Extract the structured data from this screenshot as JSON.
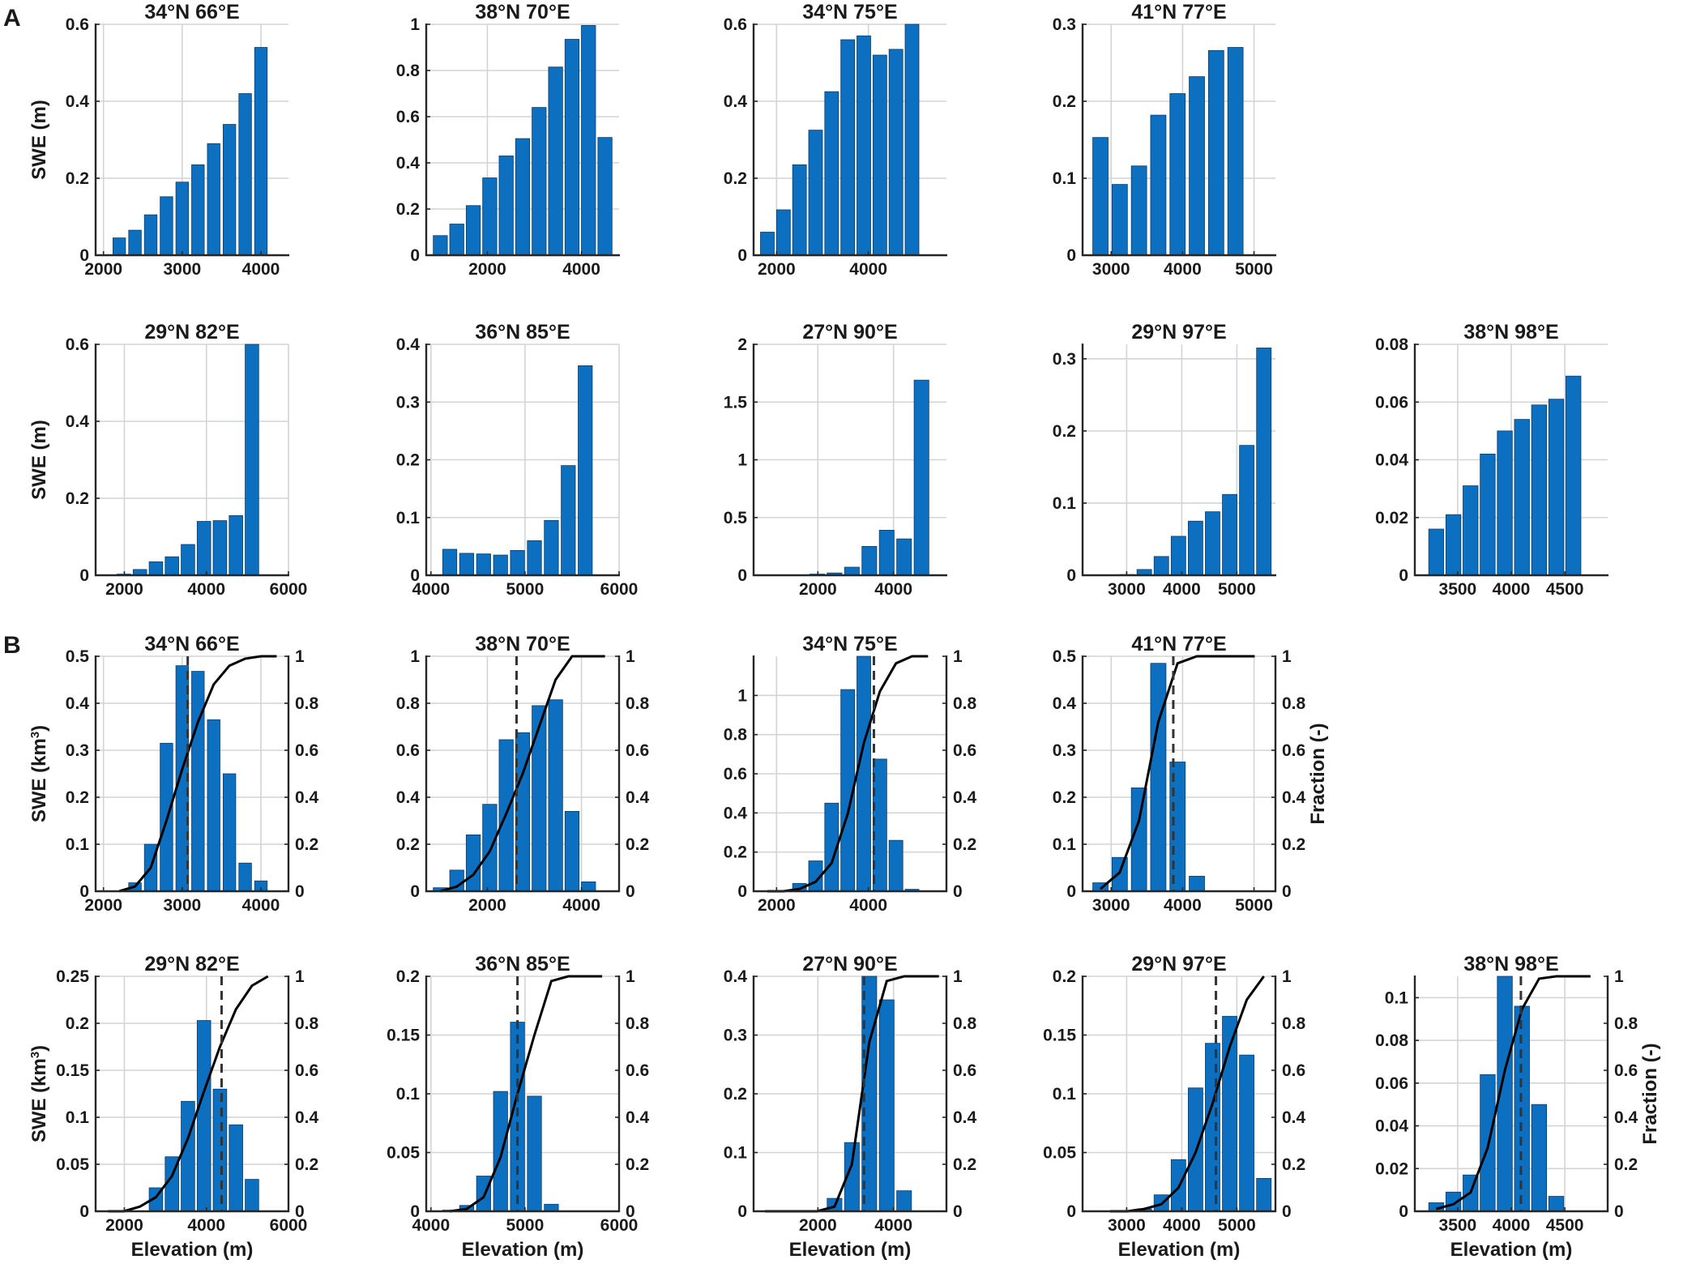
{
  "figure": {
    "panel_labels": [
      "A",
      "B"
    ],
    "colors": {
      "bar": "#0d6fbf",
      "bar_edge": "#0a3d6b",
      "grid": "#d4d4d4",
      "axis": "#262626",
      "curve": "#000000"
    }
  },
  "chart_data": [
    {
      "id": "A1",
      "type": "bar",
      "title": "34°N 66°E",
      "ylabel": "SWE (m)",
      "xlim": [
        1900,
        4350
      ],
      "ylim": [
        0,
        0.6
      ],
      "xticks": [
        2000,
        3000,
        4000
      ],
      "yticks": [
        0,
        0.2,
        0.4,
        0.6
      ],
      "ytick_labels": [
        "0",
        "0.2",
        "0.4",
        "0.6"
      ],
      "bar_width": 160,
      "x": [
        2200,
        2400,
        2600,
        2800,
        3000,
        3200,
        3400,
        3600,
        3800,
        4000,
        4200
      ],
      "values": [
        0.045,
        0.065,
        0.105,
        0.152,
        0.19,
        0.235,
        0.29,
        0.34,
        0.42,
        0.54,
        null
      ]
    },
    {
      "id": "A2",
      "type": "bar",
      "title": "38°N 70°E",
      "xlim": [
        700,
        4800
      ],
      "ylim": [
        0,
        1
      ],
      "xticks": [
        2000,
        4000
      ],
      "yticks": [
        0,
        0.2,
        0.4,
        0.6,
        0.8,
        1
      ],
      "ytick_labels": [
        "0",
        "0.2",
        "0.4",
        "0.6",
        "0.8",
        "1"
      ],
      "bar_width": 300,
      "x": [
        1000,
        1350,
        1700,
        2050,
        2400,
        2750,
        3100,
        3450,
        3800,
        4150,
        4500
      ],
      "values": [
        0.085,
        0.135,
        0.215,
        0.335,
        0.43,
        0.505,
        0.64,
        0.815,
        0.935,
        0.995,
        0.51
      ]
    },
    {
      "id": "A3",
      "type": "bar",
      "title": "34°N 75°E",
      "xlim": [
        1500,
        5700
      ],
      "ylim": [
        0,
        0.6
      ],
      "xticks": [
        2000,
        4000
      ],
      "yticks": [
        0,
        0.2,
        0.4,
        0.6
      ],
      "ytick_labels": [
        "0",
        "0.2",
        "0.4",
        "0.6"
      ],
      "bar_width": 300,
      "x": [
        1800,
        2150,
        2500,
        2850,
        3200,
        3550,
        3900,
        4250,
        4600,
        4950,
        5300
      ],
      "values": [
        0.06,
        0.118,
        0.235,
        0.325,
        0.425,
        0.56,
        0.57,
        0.52,
        0.535,
        0.61,
        null
      ]
    },
    {
      "id": "A4",
      "type": "bar",
      "title": "41°N 77°E",
      "xlim": [
        2600,
        5300
      ],
      "ylim": [
        0,
        0.3
      ],
      "xticks": [
        3000,
        4000,
        5000
      ],
      "yticks": [
        0,
        0.1,
        0.2,
        0.3
      ],
      "ytick_labels": [
        "0",
        "0.1",
        "0.2",
        "0.3"
      ],
      "bar_width": 215,
      "x": [
        2850,
        3120,
        3390,
        3660,
        3930,
        4200,
        4470,
        4740,
        5010
      ],
      "values": [
        0.153,
        0.092,
        0.116,
        0.182,
        0.21,
        0.232,
        0.266,
        0.27,
        null
      ]
    },
    {
      "id": "A5",
      "type": "bar",
      "title": "29°N 82°E",
      "ylabel": "SWE (m)",
      "xlim": [
        1300,
        6000
      ],
      "ylim": [
        0,
        0.6
      ],
      "xticks": [
        2000,
        4000,
        6000
      ],
      "yticks": [
        0,
        0.2,
        0.4,
        0.6
      ],
      "ytick_labels": [
        "0",
        "0.2",
        "0.4",
        "0.6"
      ],
      "bar_width": 330,
      "x": [
        1600,
        1990,
        2380,
        2770,
        3160,
        3550,
        3940,
        4330,
        4720,
        5110,
        5500
      ],
      "values": [
        0,
        0.003,
        0.015,
        0.035,
        0.048,
        0.08,
        0.14,
        0.142,
        0.155,
        0.6,
        null
      ]
    },
    {
      "id": "A6",
      "type": "bar",
      "title": "36°N 85°E",
      "xlim": [
        3950,
        6000
      ],
      "ylim": [
        0,
        0.4
      ],
      "xticks": [
        4000,
        5000,
        6000
      ],
      "yticks": [
        0,
        0.1,
        0.2,
        0.3,
        0.4
      ],
      "ytick_labels": [
        "0",
        "0.1",
        "0.2",
        "0.3",
        "0.4"
      ],
      "bar_width": 150,
      "x": [
        4200,
        4380,
        4560,
        4740,
        4920,
        5100,
        5280,
        5460,
        5640,
        5820
      ],
      "values": [
        0.045,
        0.038,
        0.037,
        0.035,
        0.043,
        0.06,
        0.095,
        0.19,
        0.363,
        null
      ]
    },
    {
      "id": "A7",
      "type": "bar",
      "title": "27°N 90°E",
      "xlim": [
        300,
        5400
      ],
      "ylim": [
        0,
        2
      ],
      "xticks": [
        2000,
        4000
      ],
      "yticks": [
        0,
        0.5,
        1,
        1.5,
        2
      ],
      "ytick_labels": [
        "0",
        "0.5",
        "1",
        "1.5",
        "2"
      ],
      "bar_width": 390,
      "x": [
        600,
        1060,
        1520,
        1980,
        2440,
        2900,
        3360,
        3820,
        4280,
        4740,
        5200
      ],
      "values": [
        0,
        0,
        0,
        0.01,
        0.02,
        0.07,
        0.25,
        0.39,
        0.315,
        1.69,
        null
      ]
    },
    {
      "id": "A8",
      "type": "bar",
      "title": "29°N 97°E",
      "xlim": [
        2200,
        5700
      ],
      "ylim": [
        0,
        0.32
      ],
      "xticks": [
        3000,
        4000,
        5000
      ],
      "yticks": [
        0,
        0.1,
        0.2,
        0.3
      ],
      "ytick_labels": [
        "0",
        "0.1",
        "0.2",
        "0.3"
      ],
      "bar_width": 265,
      "x": [
        2700,
        3010,
        3320,
        3630,
        3940,
        4250,
        4560,
        4870,
        5180,
        5490
      ],
      "values": [
        0,
        0.001,
        0.008,
        0.026,
        0.054,
        0.075,
        0.088,
        0.112,
        0.18,
        0.315
      ]
    },
    {
      "id": "A9",
      "type": "bar",
      "title": "38°N 98°E",
      "xlim": [
        3100,
        4900
      ],
      "ylim": [
        0,
        0.08
      ],
      "xticks": [
        3500,
        4000,
        4500
      ],
      "yticks": [
        0,
        0.02,
        0.04,
        0.06,
        0.08
      ],
      "ytick_labels": [
        "0",
        "0.02",
        "0.04",
        "0.06",
        "0.08"
      ],
      "bar_width": 140,
      "x": [
        3300,
        3460,
        3620,
        3780,
        3940,
        4100,
        4260,
        4420,
        4580,
        4740
      ],
      "values": [
        0.016,
        0.021,
        0.031,
        0.042,
        0.05,
        0.054,
        0.059,
        0.061,
        0.069,
        null
      ]
    },
    {
      "id": "B1",
      "type": "bar",
      "title": "34°N 66°E",
      "ylabel": "SWE (km3)",
      "xlim": [
        1900,
        4350
      ],
      "ylim": [
        0,
        0.5
      ],
      "xticks": [
        2000,
        3000,
        4000
      ],
      "yticks": [
        0,
        0.1,
        0.2,
        0.3,
        0.4,
        0.5
      ],
      "ytick_labels": [
        "0",
        "0.1",
        "0.2",
        "0.3",
        "0.4",
        "0.5"
      ],
      "bar_width": 160,
      "y2ticks": [
        0,
        0.2,
        0.4,
        0.6,
        0.8,
        1
      ],
      "y2tick_labels": [
        "0",
        "0.2",
        "0.4",
        "0.6",
        "0.8",
        "1"
      ],
      "median": 3070,
      "x": [
        2200,
        2400,
        2600,
        2800,
        3000,
        3200,
        3400,
        3600,
        3800,
        4000,
        4200
      ],
      "values": [
        0,
        0.018,
        0.1,
        0.315,
        0.48,
        0.468,
        0.365,
        0.25,
        0.06,
        0.022,
        null
      ],
      "cumulative": [
        0,
        0.02,
        0.1,
        0.3,
        0.52,
        0.72,
        0.88,
        0.96,
        0.99,
        1,
        1
      ]
    },
    {
      "id": "B2",
      "type": "bar",
      "title": "38°N 70°E",
      "xlim": [
        700,
        4800
      ],
      "ylim": [
        0,
        1
      ],
      "xticks": [
        2000,
        4000
      ],
      "yticks": [
        0,
        0.2,
        0.4,
        0.6,
        0.8,
        1
      ],
      "ytick_labels": [
        "0",
        "0.2",
        "0.4",
        "0.6",
        "0.8",
        "1"
      ],
      "bar_width": 300,
      "y2ticks": [
        0,
        0.2,
        0.4,
        0.6,
        0.8,
        1
      ],
      "y2tick_labels": [
        "0",
        "0.2",
        "0.4",
        "0.6",
        "0.8",
        "1"
      ],
      "median": 2620,
      "x": [
        1000,
        1350,
        1700,
        2050,
        2400,
        2750,
        3100,
        3450,
        3800,
        4150,
        4500
      ],
      "values": [
        0.015,
        0.09,
        0.24,
        0.37,
        0.645,
        0.675,
        0.79,
        0.815,
        0.34,
        0.04,
        null
      ],
      "cumulative": [
        0,
        0.02,
        0.07,
        0.17,
        0.33,
        0.5,
        0.7,
        0.9,
        1,
        1,
        1
      ]
    },
    {
      "id": "B3",
      "type": "bar",
      "title": "34°N 75°E",
      "xlim": [
        1500,
        5700
      ],
      "ylim": [
        0,
        1.2
      ],
      "xticks": [
        2000,
        4000
      ],
      "yticks": [
        0,
        0.2,
        0.4,
        0.6,
        0.8,
        1
      ],
      "ytick_labels": [
        "0",
        "0.2",
        "0.4",
        "0.6",
        "0.8",
        "1"
      ],
      "bar_width": 300,
      "y2ticks": [
        0,
        0.2,
        0.4,
        0.6,
        0.8,
        1
      ],
      "y2tick_labels": [
        "0",
        "0.2",
        "0.4",
        "0.6",
        "0.8",
        "1"
      ],
      "median": 4120,
      "x": [
        1800,
        2150,
        2500,
        2850,
        3200,
        3550,
        3900,
        4250,
        4600,
        4950,
        5300
      ],
      "values": [
        0,
        0,
        0.04,
        0.155,
        0.45,
        1.03,
        1.2,
        0.675,
        0.26,
        0.01,
        null
      ],
      "cumulative": [
        0,
        0,
        0.01,
        0.04,
        0.12,
        0.33,
        0.63,
        0.85,
        0.97,
        1,
        1
      ]
    },
    {
      "id": "B4",
      "type": "bar",
      "title": "41°N 77°E",
      "ylabel2": "Fraction (-)",
      "xlim": [
        2600,
        5300
      ],
      "ylim": [
        0,
        0.5
      ],
      "xticks": [
        3000,
        4000,
        5000
      ],
      "yticks": [
        0,
        0.1,
        0.2,
        0.3,
        0.4,
        0.5
      ],
      "ytick_labels": [
        "0",
        "0.1",
        "0.2",
        "0.3",
        "0.4",
        "0.5"
      ],
      "bar_width": 215,
      "y2ticks": [
        0,
        0.2,
        0.4,
        0.6,
        0.8,
        1
      ],
      "y2tick_labels": [
        "0",
        "0.2",
        "0.4",
        "0.6",
        "0.8",
        "1"
      ],
      "median": 3870,
      "x": [
        2850,
        3120,
        3390,
        3660,
        3930,
        4200,
        4470,
        4740,
        5010
      ],
      "values": [
        0.018,
        0.072,
        0.22,
        0.485,
        0.275,
        0.032,
        0,
        0,
        null
      ],
      "cumulative": [
        0.01,
        0.08,
        0.3,
        0.72,
        0.97,
        1,
        1,
        1,
        1
      ]
    },
    {
      "id": "B5",
      "type": "bar",
      "title": "29°N 82°E",
      "ylabel": "SWE (km3)",
      "xlabel": "Elevation (m)",
      "xlim": [
        1300,
        6000
      ],
      "ylim": [
        0,
        0.25
      ],
      "xticks": [
        2000,
        4000,
        6000
      ],
      "yticks": [
        0,
        0.05,
        0.1,
        0.15,
        0.2,
        0.25
      ],
      "ytick_labels": [
        "0",
        "0.05",
        "0.1",
        "0.15",
        "0.2",
        "0.25"
      ],
      "bar_width": 330,
      "y2ticks": [
        0,
        0.2,
        0.4,
        0.6,
        0.8,
        1
      ],
      "y2tick_labels": [
        "0",
        "0.2",
        "0.4",
        "0.6",
        "0.8",
        "1"
      ],
      "median": 4370,
      "x": [
        1600,
        1990,
        2380,
        2770,
        3160,
        3550,
        3940,
        4330,
        4720,
        5110,
        5500
      ],
      "values": [
        0,
        0,
        0,
        0.025,
        0.058,
        0.117,
        0.203,
        0.13,
        0.092,
        0.034,
        null
      ],
      "cumulative": [
        0,
        0,
        0.02,
        0.06,
        0.15,
        0.31,
        0.51,
        0.7,
        0.86,
        0.96,
        1
      ]
    },
    {
      "id": "B6",
      "type": "bar",
      "title": "36°N 85°E",
      "xlabel": "Elevation (m)",
      "xlim": [
        3950,
        6000
      ],
      "ylim": [
        0,
        0.2
      ],
      "xticks": [
        4000,
        5000,
        6000
      ],
      "yticks": [
        0,
        0.05,
        0.1,
        0.15,
        0.2
      ],
      "ytick_labels": [
        "0",
        "0.05",
        "0.1",
        "0.15",
        "0.2"
      ],
      "bar_width": 150,
      "y2ticks": [
        0,
        0.2,
        0.4,
        0.6,
        0.8,
        1
      ],
      "y2tick_labels": [
        "0",
        "0.2",
        "0.4",
        "0.6",
        "0.8",
        "1"
      ],
      "median": 4920,
      "x": [
        4200,
        4380,
        4560,
        4740,
        4920,
        5100,
        5280,
        5460,
        5640,
        5820
      ],
      "values": [
        0.001,
        0.005,
        0.03,
        0.102,
        0.161,
        0.098,
        0.006,
        0,
        0,
        null
      ],
      "cumulative": [
        0,
        0.01,
        0.06,
        0.23,
        0.5,
        0.75,
        0.98,
        1,
        1,
        1
      ]
    },
    {
      "id": "B7",
      "type": "bar",
      "title": "27°N 90°E",
      "xlabel": "Elevation (m)",
      "xlim": [
        300,
        5400
      ],
      "ylim": [
        0,
        0.4
      ],
      "xticks": [
        2000,
        4000
      ],
      "yticks": [
        0,
        0.1,
        0.2,
        0.3,
        0.4
      ],
      "ytick_labels": [
        "0",
        "0.1",
        "0.2",
        "0.3",
        "0.4"
      ],
      "bar_width": 390,
      "y2ticks": [
        0,
        0.2,
        0.4,
        0.6,
        0.8,
        1
      ],
      "y2tick_labels": [
        "0",
        "0.2",
        "0.4",
        "0.6",
        "0.8",
        "1"
      ],
      "median": 3220,
      "x": [
        600,
        1060,
        1520,
        1980,
        2440,
        2900,
        3360,
        3820,
        4280,
        4740,
        5200
      ],
      "values": [
        0,
        0,
        0,
        0.001,
        0.022,
        0.117,
        0.4,
        0.36,
        0.035,
        0,
        null
      ],
      "cumulative": [
        0,
        0,
        0,
        0,
        0.02,
        0.2,
        0.72,
        0.98,
        1,
        1,
        1
      ]
    },
    {
      "id": "B8",
      "type": "bar",
      "title": "29°N 97°E",
      "xlabel": "Elevation (m)",
      "xlim": [
        2200,
        5700
      ],
      "ylim": [
        0,
        0.2
      ],
      "xticks": [
        3000,
        4000,
        5000
      ],
      "yticks": [
        0,
        0.05,
        0.1,
        0.15,
        0.2
      ],
      "ytick_labels": [
        "0",
        "0.05",
        "0.1",
        "0.15",
        "0.2"
      ],
      "bar_width": 265,
      "y2ticks": [
        0,
        0.2,
        0.4,
        0.6,
        0.8,
        1
      ],
      "y2tick_labels": [
        "0",
        "0.2",
        "0.4",
        "0.6",
        "0.8",
        "1"
      ],
      "median": 4620,
      "x": [
        2700,
        3010,
        3320,
        3630,
        3940,
        4250,
        4560,
        4870,
        5180,
        5490
      ],
      "values": [
        0,
        0,
        0.002,
        0.014,
        0.044,
        0.105,
        0.143,
        0.166,
        0.133,
        0.028
      ],
      "cumulative": [
        0,
        0,
        0.01,
        0.03,
        0.1,
        0.25,
        0.46,
        0.7,
        0.9,
        1
      ]
    },
    {
      "id": "B9",
      "type": "bar",
      "title": "38°N 98°E",
      "ylabel2": "Fraction (-)",
      "xlabel": "Elevation (m)",
      "xlim": [
        3100,
        4900
      ],
      "ylim": [
        0,
        0.11
      ],
      "xticks": [
        3500,
        4000,
        4500
      ],
      "yticks": [
        0,
        0.02,
        0.04,
        0.06,
        0.08,
        0.1
      ],
      "ytick_labels": [
        "0",
        "0.02",
        "0.04",
        "0.06",
        "0.08",
        "0.1"
      ],
      "bar_width": 140,
      "y2ticks": [
        0,
        0.2,
        0.4,
        0.6,
        0.8,
        1
      ],
      "y2tick_labels": [
        "0",
        "0.2",
        "0.4",
        "0.6",
        "0.8",
        "1"
      ],
      "median": 4090,
      "x": [
        3300,
        3460,
        3620,
        3780,
        3940,
        4100,
        4260,
        4420,
        4580,
        4740
      ],
      "values": [
        0.004,
        0.009,
        0.017,
        0.064,
        0.113,
        0.096,
        0.05,
        0.007,
        0,
        null
      ],
      "cumulative": [
        0.01,
        0.03,
        0.08,
        0.27,
        0.6,
        0.86,
        0.99,
        1,
        1,
        1
      ]
    }
  ]
}
